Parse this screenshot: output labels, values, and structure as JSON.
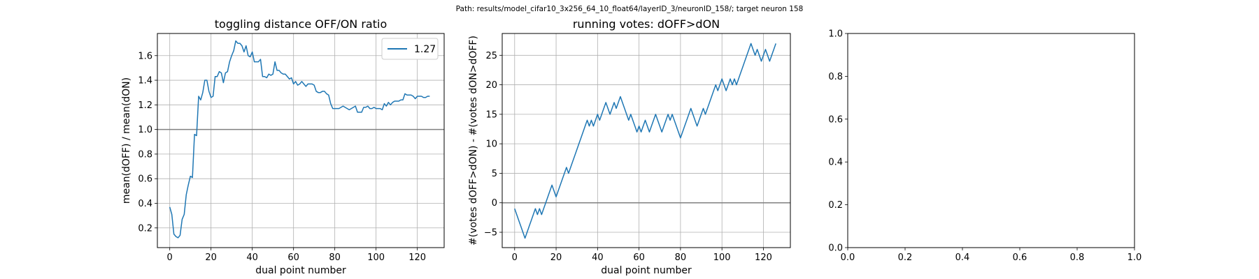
{
  "figure": {
    "suptitle": "Path: results/model_cifar10_3x256_64_10_float64/layerID_3/neuronID_158/; target neuron 158"
  },
  "chart_data": [
    {
      "type": "line",
      "title": "toggling distance OFF/ON ratio",
      "xlabel": "dual point number",
      "ylabel": "mean(dOFF) / mean(dON)",
      "xlim": [
        -6,
        133
      ],
      "ylim": [
        0.04,
        1.78
      ],
      "xticks": [
        0,
        20,
        40,
        60,
        80,
        100,
        120
      ],
      "yticks": [
        0.2,
        0.4,
        0.6,
        0.8,
        1.0,
        1.2,
        1.4,
        1.6
      ],
      "ytick_labels": [
        "0.2",
        "0.4",
        "0.6",
        "0.8",
        "1.0",
        "1.2",
        "1.4",
        "1.6"
      ],
      "grid": true,
      "reference_line_y": 1.0,
      "legend_position": "top-right",
      "series": [
        {
          "name": "1.27",
          "color": "#1f77b4",
          "x_start": 0,
          "values": [
            0.37,
            0.31,
            0.15,
            0.13,
            0.12,
            0.14,
            0.27,
            0.31,
            0.47,
            0.55,
            0.62,
            0.61,
            0.96,
            0.95,
            1.27,
            1.24,
            1.3,
            1.4,
            1.4,
            1.31,
            1.26,
            1.27,
            1.43,
            1.43,
            1.47,
            1.46,
            1.38,
            1.46,
            1.47,
            1.55,
            1.6,
            1.64,
            1.72,
            1.7,
            1.7,
            1.68,
            1.63,
            1.68,
            1.6,
            1.59,
            1.63,
            1.55,
            1.55,
            1.55,
            1.57,
            1.43,
            1.43,
            1.42,
            1.45,
            1.44,
            1.45,
            1.55,
            1.48,
            1.48,
            1.46,
            1.45,
            1.45,
            1.43,
            1.41,
            1.42,
            1.37,
            1.39,
            1.36,
            1.37,
            1.39,
            1.37,
            1.35,
            1.37,
            1.37,
            1.37,
            1.36,
            1.31,
            1.3,
            1.3,
            1.31,
            1.31,
            1.29,
            1.28,
            1.21,
            1.17,
            1.17,
            1.17,
            1.17,
            1.18,
            1.19,
            1.18,
            1.17,
            1.16,
            1.17,
            1.18,
            1.19,
            1.14,
            1.14,
            1.14,
            1.18,
            1.18,
            1.19,
            1.17,
            1.17,
            1.18,
            1.17,
            1.17,
            1.17,
            1.16,
            1.21,
            1.19,
            1.22,
            1.2,
            1.22,
            1.23,
            1.23,
            1.23,
            1.24,
            1.24,
            1.29,
            1.28,
            1.28,
            1.28,
            1.27,
            1.25,
            1.27,
            1.27,
            1.27,
            1.26,
            1.26,
            1.27,
            1.27
          ]
        }
      ]
    },
    {
      "type": "line",
      "title": "running votes: dOFF>dON",
      "xlabel": "dual point number",
      "ylabel": "#(votes dOFF>dON) - #(votes dON>dOFF)",
      "xlim": [
        -6,
        133
      ],
      "ylim": [
        -7.6,
        28.7
      ],
      "xticks": [
        0,
        20,
        40,
        60,
        80,
        100,
        120
      ],
      "yticks": [
        -5,
        0,
        5,
        10,
        15,
        20,
        25
      ],
      "ytick_labels": [
        "−5",
        "0",
        "5",
        "10",
        "15",
        "20",
        "25"
      ],
      "grid": true,
      "reference_line_y": 0,
      "series": [
        {
          "name": "running votes",
          "color": "#1f77b4",
          "x_start": 0,
          "values": [
            -1,
            -2,
            -3,
            -4,
            -5,
            -6,
            -5,
            -4,
            -3,
            -2,
            -1,
            -2,
            -1,
            -2,
            -1,
            0,
            1,
            2,
            3,
            2,
            1,
            2,
            3,
            4,
            5,
            6,
            5,
            6,
            7,
            8,
            9,
            10,
            11,
            12,
            13,
            14,
            13,
            14,
            13,
            14,
            15,
            14,
            15,
            16,
            17,
            16,
            15,
            16,
            17,
            16,
            17,
            18,
            17,
            16,
            15,
            14,
            15,
            14,
            13,
            12,
            13,
            12,
            13,
            14,
            13,
            12,
            13,
            14,
            15,
            14,
            13,
            12,
            13,
            14,
            15,
            14,
            15,
            14,
            13,
            12,
            11,
            12,
            13,
            14,
            15,
            16,
            15,
            14,
            13,
            14,
            15,
            16,
            15,
            16,
            17,
            18,
            19,
            20,
            19,
            20,
            21,
            20,
            19,
            20,
            21,
            20,
            21,
            20,
            21,
            22,
            23,
            24,
            25,
            26,
            27,
            26,
            25,
            26,
            25,
            24,
            25,
            26,
            25,
            24,
            25,
            26,
            27
          ]
        }
      ]
    },
    {
      "type": "line",
      "title": "",
      "xlabel": "",
      "ylabel": "",
      "xlim": [
        0,
        1
      ],
      "ylim": [
        0,
        1
      ],
      "xticks": [
        0,
        0.2,
        0.4,
        0.6,
        0.8,
        1.0
      ],
      "xtick_labels": [
        "0.0",
        "0.2",
        "0.4",
        "0.6",
        "0.8",
        "1.0"
      ],
      "yticks": [
        0,
        0.2,
        0.4,
        0.6,
        0.8,
        1.0
      ],
      "ytick_labels": [
        "0.0",
        "0.2",
        "0.4",
        "0.6",
        "0.8",
        "1.0"
      ],
      "grid": false,
      "series": []
    }
  ]
}
